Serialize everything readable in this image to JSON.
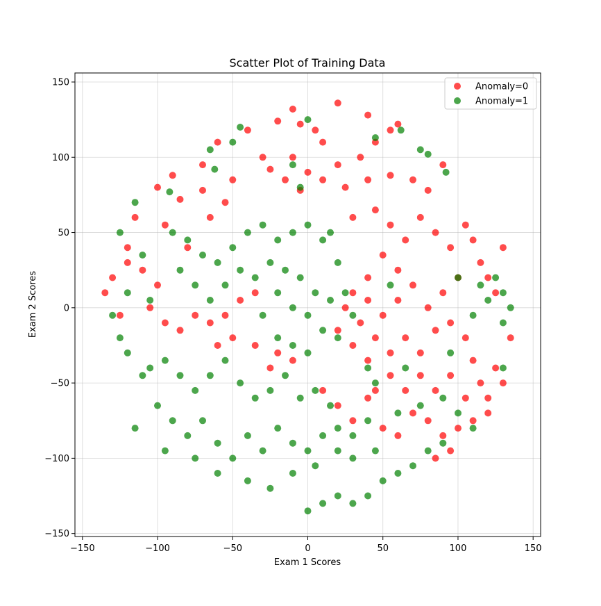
{
  "chart_data": {
    "type": "scatter",
    "title": "Scatter Plot of Training Data",
    "xlabel": "Exam 1 Scores",
    "ylabel": "Exam 2 Scores",
    "xlim": [
      -155,
      155
    ],
    "ylim": [
      -152,
      156
    ],
    "xticks": [
      -150,
      -100,
      -50,
      0,
      50,
      100,
      150
    ],
    "yticks": [
      -150,
      -100,
      -50,
      0,
      50,
      100,
      150
    ],
    "xtick_labels": [
      "−150",
      "−100",
      "−50",
      "0",
      "50",
      "100",
      "150"
    ],
    "ytick_labels": [
      "−150",
      "−100",
      "−50",
      "0",
      "50",
      "100",
      "150"
    ],
    "grid": true,
    "legend_position": "top-right",
    "series": [
      {
        "name": "Anomaly=0",
        "color": "#ff0000",
        "alpha": 0.7,
        "points": [
          [
            -60,
            110
          ],
          [
            -40,
            118
          ],
          [
            -20,
            124
          ],
          [
            -5,
            122
          ],
          [
            5,
            118
          ],
          [
            10,
            110
          ],
          [
            -30,
            100
          ],
          [
            -70,
            95
          ],
          [
            -90,
            88
          ],
          [
            -100,
            80
          ],
          [
            -85,
            72
          ],
          [
            -70,
            78
          ],
          [
            -50,
            85
          ],
          [
            -25,
            92
          ],
          [
            -15,
            85
          ],
          [
            -5,
            78
          ],
          [
            10,
            85
          ],
          [
            20,
            95
          ],
          [
            35,
            100
          ],
          [
            45,
            110
          ],
          [
            55,
            118
          ],
          [
            -10,
            132
          ],
          [
            20,
            136
          ],
          [
            40,
            128
          ],
          [
            60,
            122
          ],
          [
            -10,
            100
          ],
          [
            0,
            90
          ],
          [
            25,
            80
          ],
          [
            40,
            85
          ],
          [
            55,
            88
          ],
          [
            70,
            85
          ],
          [
            80,
            78
          ],
          [
            90,
            95
          ],
          [
            30,
            60
          ],
          [
            45,
            65
          ],
          [
            55,
            55
          ],
          [
            65,
            45
          ],
          [
            75,
            60
          ],
          [
            85,
            50
          ],
          [
            95,
            40
          ],
          [
            105,
            55
          ],
          [
            110,
            45
          ],
          [
            115,
            30
          ],
          [
            120,
            20
          ],
          [
            125,
            10
          ],
          [
            130,
            40
          ],
          [
            100,
            20
          ],
          [
            90,
            10
          ],
          [
            80,
            0
          ],
          [
            70,
            15
          ],
          [
            60,
            25
          ],
          [
            50,
            35
          ],
          [
            40,
            20
          ],
          [
            30,
            10
          ],
          [
            25,
            0
          ],
          [
            35,
            -10
          ],
          [
            45,
            -20
          ],
          [
            55,
            -30
          ],
          [
            65,
            -20
          ],
          [
            75,
            -30
          ],
          [
            85,
            -15
          ],
          [
            95,
            -10
          ],
          [
            105,
            -20
          ],
          [
            110,
            -35
          ],
          [
            115,
            -50
          ],
          [
            120,
            -60
          ],
          [
            105,
            -60
          ],
          [
            95,
            -45
          ],
          [
            85,
            -55
          ],
          [
            75,
            -45
          ],
          [
            65,
            -55
          ],
          [
            55,
            -45
          ],
          [
            45,
            -55
          ],
          [
            40,
            -35
          ],
          [
            30,
            -25
          ],
          [
            20,
            -15
          ],
          [
            60,
            5
          ],
          [
            50,
            -5
          ],
          [
            40,
            5
          ],
          [
            -130,
            20
          ],
          [
            -120,
            30
          ],
          [
            -110,
            25
          ],
          [
            -100,
            15
          ],
          [
            -105,
            0
          ],
          [
            -95,
            -10
          ],
          [
            -85,
            -15
          ],
          [
            -75,
            -5
          ],
          [
            -65,
            -10
          ],
          [
            -55,
            -5
          ],
          [
            -45,
            5
          ],
          [
            -35,
            10
          ],
          [
            -60,
            -25
          ],
          [
            -50,
            -20
          ],
          [
            -35,
            -25
          ],
          [
            -20,
            -30
          ],
          [
            -10,
            -35
          ],
          [
            -25,
            -40
          ],
          [
            10,
            -55
          ],
          [
            20,
            -65
          ],
          [
            30,
            -75
          ],
          [
            40,
            -60
          ],
          [
            50,
            -80
          ],
          [
            60,
            -85
          ],
          [
            70,
            -70
          ],
          [
            80,
            -75
          ],
          [
            90,
            -85
          ],
          [
            100,
            -80
          ],
          [
            110,
            -75
          ],
          [
            120,
            -70
          ],
          [
            130,
            -50
          ],
          [
            135,
            -20
          ],
          [
            125,
            -40
          ],
          [
            85,
            -100
          ],
          [
            95,
            -95
          ],
          [
            -135,
            10
          ],
          [
            -125,
            -5
          ],
          [
            -115,
            60
          ],
          [
            -95,
            55
          ],
          [
            -80,
            40
          ],
          [
            -65,
            60
          ],
          [
            -55,
            70
          ],
          [
            -120,
            40
          ]
        ]
      },
      {
        "name": "Anomaly=1",
        "color": "#008000",
        "alpha": 0.7,
        "points": [
          [
            -90,
            50
          ],
          [
            -80,
            45
          ],
          [
            -70,
            35
          ],
          [
            -60,
            30
          ],
          [
            -50,
            40
          ],
          [
            -40,
            50
          ],
          [
            -30,
            55
          ],
          [
            -20,
            45
          ],
          [
            -10,
            50
          ],
          [
            0,
            55
          ],
          [
            10,
            45
          ],
          [
            20,
            30
          ],
          [
            -85,
            25
          ],
          [
            -75,
            15
          ],
          [
            -65,
            5
          ],
          [
            -55,
            15
          ],
          [
            -45,
            25
          ],
          [
            -35,
            20
          ],
          [
            -25,
            30
          ],
          [
            -15,
            25
          ],
          [
            -5,
            20
          ],
          [
            5,
            10
          ],
          [
            15,
            5
          ],
          [
            -20,
            10
          ],
          [
            -10,
            0
          ],
          [
            0,
            -5
          ],
          [
            10,
            -15
          ],
          [
            -30,
            -5
          ],
          [
            -20,
            -20
          ],
          [
            -10,
            -25
          ],
          [
            0,
            -30
          ],
          [
            20,
            -20
          ],
          [
            30,
            -5
          ],
          [
            25,
            10
          ],
          [
            -105,
            -40
          ],
          [
            -95,
            -35
          ],
          [
            -85,
            -45
          ],
          [
            -75,
            -55
          ],
          [
            -65,
            -45
          ],
          [
            -55,
            -35
          ],
          [
            -45,
            -50
          ],
          [
            -35,
            -60
          ],
          [
            -25,
            -55
          ],
          [
            -15,
            -45
          ],
          [
            -5,
            -60
          ],
          [
            5,
            -55
          ],
          [
            15,
            -65
          ],
          [
            -100,
            -65
          ],
          [
            -90,
            -75
          ],
          [
            -80,
            -85
          ],
          [
            -70,
            -75
          ],
          [
            -60,
            -90
          ],
          [
            -50,
            -100
          ],
          [
            -40,
            -85
          ],
          [
            -30,
            -95
          ],
          [
            -20,
            -80
          ],
          [
            -10,
            -90
          ],
          [
            0,
            -95
          ],
          [
            10,
            -85
          ],
          [
            20,
            -95
          ],
          [
            30,
            -100
          ],
          [
            -115,
            -80
          ],
          [
            -95,
            -95
          ],
          [
            -75,
            -100
          ],
          [
            -60,
            -110
          ],
          [
            -40,
            -115
          ],
          [
            -25,
            -120
          ],
          [
            -10,
            -110
          ],
          [
            5,
            -105
          ],
          [
            -125,
            -20
          ],
          [
            -130,
            -5
          ],
          [
            -120,
            -30
          ],
          [
            -110,
            -45
          ],
          [
            -115,
            70
          ],
          [
            -125,
            50
          ],
          [
            -110,
            35
          ],
          [
            -120,
            10
          ],
          [
            -105,
            5
          ],
          [
            10,
            -130
          ],
          [
            20,
            -125
          ],
          [
            30,
            -130
          ],
          [
            40,
            -125
          ],
          [
            50,
            -115
          ],
          [
            60,
            -110
          ],
          [
            70,
            -105
          ],
          [
            80,
            -95
          ],
          [
            90,
            -90
          ],
          [
            0,
            -135
          ],
          [
            60,
            -70
          ],
          [
            75,
            -65
          ],
          [
            90,
            -60
          ],
          [
            100,
            -70
          ],
          [
            40,
            -75
          ],
          [
            30,
            -85
          ],
          [
            45,
            -95
          ],
          [
            125,
            20
          ],
          [
            130,
            10
          ],
          [
            135,
            0
          ],
          [
            130,
            -10
          ],
          [
            120,
            5
          ],
          [
            115,
            15
          ],
          [
            110,
            -5
          ],
          [
            100,
            20
          ],
          [
            95,
            -30
          ],
          [
            110,
            -80
          ],
          [
            130,
            -40
          ],
          [
            -65,
            105
          ],
          [
            -50,
            110
          ],
          [
            -45,
            120
          ],
          [
            -10,
            95
          ],
          [
            0,
            125
          ],
          [
            45,
            113
          ],
          [
            62,
            118
          ],
          [
            75,
            105
          ],
          [
            80,
            102
          ],
          [
            92,
            90
          ],
          [
            -92,
            77
          ],
          [
            -62,
            92
          ],
          [
            -5,
            80
          ],
          [
            15,
            50
          ],
          [
            40,
            -40
          ],
          [
            55,
            15
          ],
          [
            20,
            -80
          ],
          [
            45,
            -50
          ],
          [
            65,
            -40
          ]
        ]
      }
    ]
  }
}
